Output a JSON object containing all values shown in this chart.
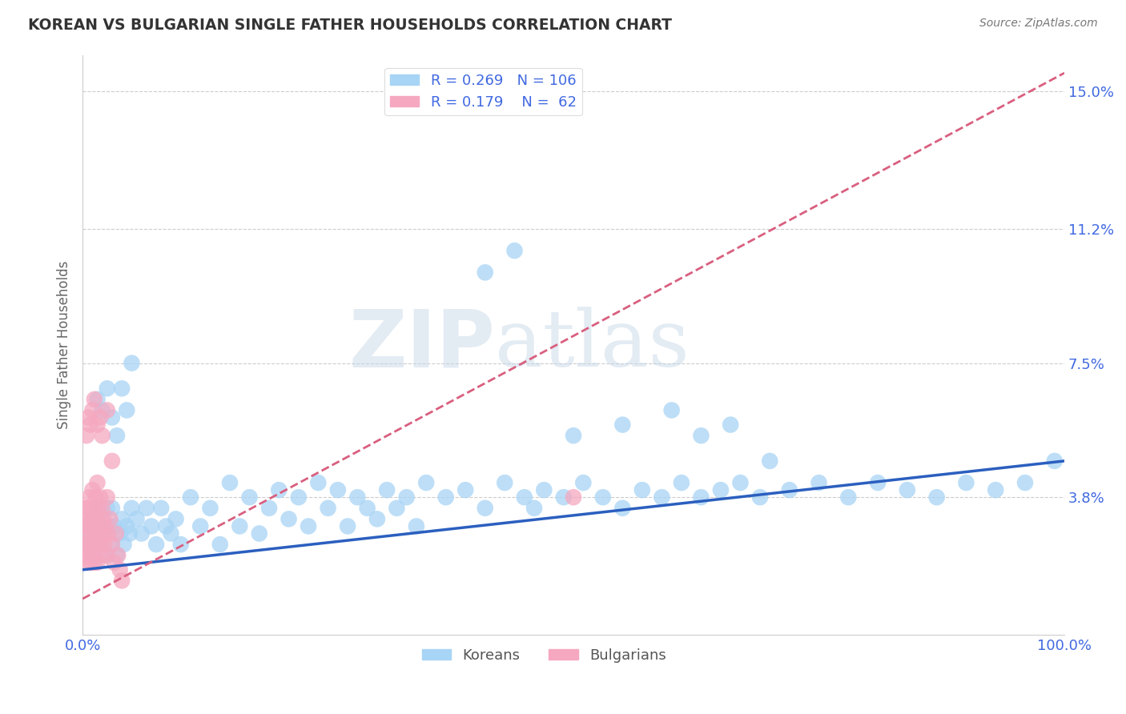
{
  "title": "KOREAN VS BULGARIAN SINGLE FATHER HOUSEHOLDS CORRELATION CHART",
  "source": "Source: ZipAtlas.com",
  "ylabel": "Single Father Households",
  "xlim": [
    0.0,
    1.0
  ],
  "ylim": [
    0.0,
    0.16
  ],
  "yticks": [
    0.0,
    0.038,
    0.075,
    0.112,
    0.15
  ],
  "ytick_labels": [
    "",
    "3.8%",
    "7.5%",
    "11.2%",
    "15.0%"
  ],
  "xtick_labels": [
    "0.0%",
    "100.0%"
  ],
  "korean_R": 0.269,
  "korean_N": 106,
  "bulgarian_R": 0.179,
  "bulgarian_N": 62,
  "korean_color": "#A8D4F5",
  "bulgarian_color": "#F5A8C0",
  "korean_line_color": "#2B5FBF",
  "bulgarian_line_color": "#D95F7F",
  "grid_color": "#CCCCCC",
  "axis_label_color": "#4169E1",
  "watermark_color": "#C8D8E8",
  "korean_line_x0": 0.0,
  "korean_line_y0": 0.018,
  "korean_line_x1": 1.0,
  "korean_line_y1": 0.048,
  "bulgarian_line_x0": 0.0,
  "bulgarian_line_y0": 0.01,
  "bulgarian_line_x1": 1.0,
  "bulgarian_line_y1": 0.155,
  "korean_scatter_x": [
    0.005,
    0.005,
    0.008,
    0.01,
    0.01,
    0.012,
    0.012,
    0.014,
    0.015,
    0.015,
    0.018,
    0.02,
    0.02,
    0.022,
    0.025,
    0.025,
    0.028,
    0.03,
    0.03,
    0.032,
    0.035,
    0.038,
    0.04,
    0.042,
    0.045,
    0.048,
    0.05,
    0.055,
    0.06,
    0.065,
    0.07,
    0.075,
    0.08,
    0.085,
    0.09,
    0.095,
    0.1,
    0.11,
    0.12,
    0.13,
    0.14,
    0.15,
    0.16,
    0.17,
    0.18,
    0.19,
    0.2,
    0.21,
    0.22,
    0.23,
    0.24,
    0.25,
    0.26,
    0.27,
    0.28,
    0.29,
    0.3,
    0.31,
    0.32,
    0.33,
    0.34,
    0.35,
    0.37,
    0.39,
    0.41,
    0.43,
    0.45,
    0.46,
    0.47,
    0.49,
    0.51,
    0.53,
    0.55,
    0.57,
    0.59,
    0.61,
    0.63,
    0.65,
    0.67,
    0.69,
    0.72,
    0.75,
    0.78,
    0.81,
    0.84,
    0.87,
    0.9,
    0.93,
    0.96,
    0.99,
    0.015,
    0.02,
    0.025,
    0.03,
    0.035,
    0.04,
    0.045,
    0.05,
    0.41,
    0.44,
    0.5,
    0.55,
    0.6,
    0.63,
    0.66,
    0.7
  ],
  "korean_scatter_y": [
    0.025,
    0.03,
    0.028,
    0.025,
    0.032,
    0.022,
    0.03,
    0.028,
    0.025,
    0.035,
    0.03,
    0.025,
    0.032,
    0.028,
    0.022,
    0.035,
    0.03,
    0.025,
    0.035,
    0.03,
    0.022,
    0.028,
    0.032,
    0.025,
    0.03,
    0.028,
    0.035,
    0.032,
    0.028,
    0.035,
    0.03,
    0.025,
    0.035,
    0.03,
    0.028,
    0.032,
    0.025,
    0.038,
    0.03,
    0.035,
    0.025,
    0.042,
    0.03,
    0.038,
    0.028,
    0.035,
    0.04,
    0.032,
    0.038,
    0.03,
    0.042,
    0.035,
    0.04,
    0.03,
    0.038,
    0.035,
    0.032,
    0.04,
    0.035,
    0.038,
    0.03,
    0.042,
    0.038,
    0.04,
    0.035,
    0.042,
    0.038,
    0.035,
    0.04,
    0.038,
    0.042,
    0.038,
    0.035,
    0.04,
    0.038,
    0.042,
    0.038,
    0.04,
    0.042,
    0.038,
    0.04,
    0.042,
    0.038,
    0.042,
    0.04,
    0.038,
    0.042,
    0.04,
    0.042,
    0.048,
    0.065,
    0.062,
    0.068,
    0.06,
    0.055,
    0.068,
    0.062,
    0.075,
    0.1,
    0.106,
    0.055,
    0.058,
    0.062,
    0.055,
    0.058,
    0.048
  ],
  "bulgarian_scatter_x": [
    0.003,
    0.003,
    0.004,
    0.004,
    0.005,
    0.005,
    0.005,
    0.006,
    0.006,
    0.007,
    0.007,
    0.007,
    0.008,
    0.008,
    0.008,
    0.009,
    0.009,
    0.01,
    0.01,
    0.01,
    0.011,
    0.011,
    0.012,
    0.012,
    0.013,
    0.013,
    0.014,
    0.014,
    0.015,
    0.015,
    0.016,
    0.016,
    0.017,
    0.018,
    0.018,
    0.019,
    0.02,
    0.02,
    0.021,
    0.022,
    0.023,
    0.024,
    0.025,
    0.026,
    0.028,
    0.03,
    0.032,
    0.034,
    0.036,
    0.038,
    0.04,
    0.004,
    0.006,
    0.008,
    0.01,
    0.012,
    0.015,
    0.018,
    0.02,
    0.025,
    0.03,
    0.5
  ],
  "bulgarian_scatter_y": [
    0.025,
    0.03,
    0.022,
    0.035,
    0.028,
    0.032,
    0.02,
    0.025,
    0.035,
    0.022,
    0.03,
    0.038,
    0.025,
    0.032,
    0.02,
    0.028,
    0.035,
    0.022,
    0.03,
    0.04,
    0.025,
    0.032,
    0.02,
    0.035,
    0.028,
    0.038,
    0.025,
    0.032,
    0.02,
    0.042,
    0.028,
    0.035,
    0.025,
    0.03,
    0.038,
    0.022,
    0.035,
    0.028,
    0.032,
    0.025,
    0.03,
    0.022,
    0.038,
    0.028,
    0.032,
    0.025,
    0.02,
    0.028,
    0.022,
    0.018,
    0.015,
    0.055,
    0.06,
    0.058,
    0.062,
    0.065,
    0.058,
    0.06,
    0.055,
    0.062,
    0.048,
    0.038
  ]
}
